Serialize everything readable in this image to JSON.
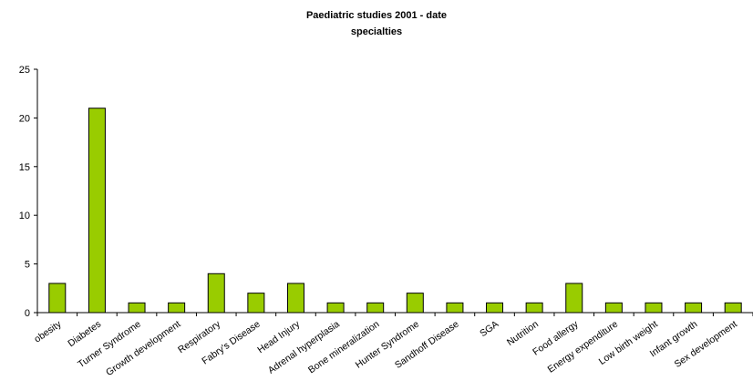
{
  "chart_data": {
    "type": "bar",
    "title": "Paediatric studies 2001 - date",
    "subtitle": "specialties",
    "xlabel": "",
    "ylabel": "",
    "ylim": [
      0,
      25
    ],
    "yticks": [
      0,
      5,
      10,
      15,
      20,
      25
    ],
    "grid": false,
    "legend": "none",
    "bar_color": "#99cc00",
    "categories": [
      "obesity",
      "Diabetes",
      "Turner Syndrome",
      "Growth development",
      "Respiratory",
      "Fabry's Disease",
      "Head Injury",
      "Adrenal hyperplasia",
      "Bone mineralization",
      "Hunter Syndrome",
      "Sandhoff Disease",
      "SGA",
      "Nutrition",
      "Food allergy",
      "Energy expenditure",
      "Low birth weight",
      "Infant growth",
      "Sex development"
    ],
    "values": [
      3,
      21,
      1,
      1,
      4,
      2,
      3,
      1,
      1,
      2,
      1,
      1,
      1,
      3,
      1,
      1,
      1,
      1
    ]
  }
}
